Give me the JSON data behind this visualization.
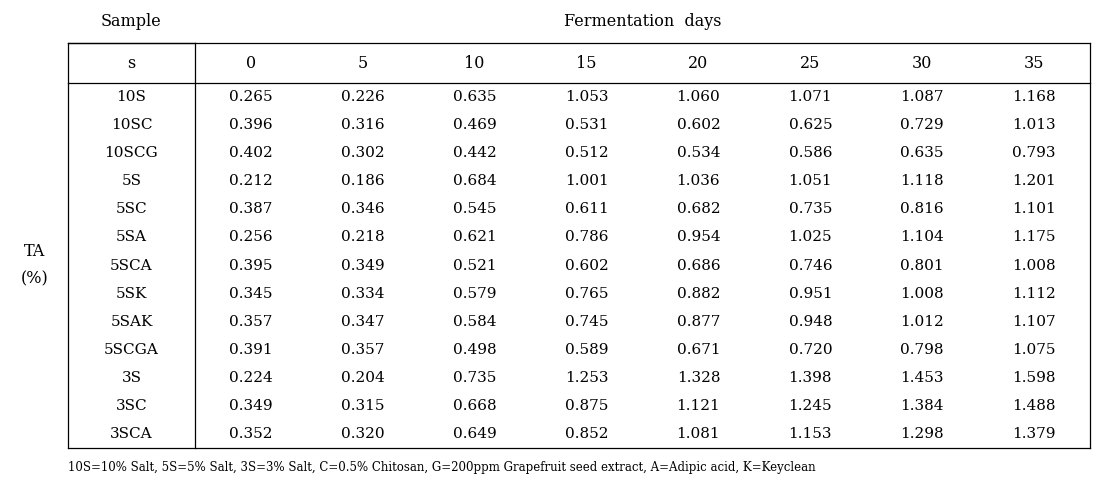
{
  "title": "Fermentation  days",
  "row_label_main": "TA\n(%)",
  "col_header_left1": "Sample",
  "col_header_left2": "s",
  "fermentation_days": [
    "0",
    "5",
    "10",
    "15",
    "20",
    "25",
    "30",
    "35"
  ],
  "samples": [
    "10S",
    "10SC",
    "10SCG",
    "5S",
    "5SC",
    "5SA",
    "5SCA",
    "5SK",
    "5SAK",
    "5SCGA",
    "3S",
    "3SC",
    "3SCA"
  ],
  "data": [
    [
      0.265,
      0.226,
      0.635,
      1.053,
      1.06,
      1.071,
      1.087,
      1.168
    ],
    [
      0.396,
      0.316,
      0.469,
      0.531,
      0.602,
      0.625,
      0.729,
      1.013
    ],
    [
      0.402,
      0.302,
      0.442,
      0.512,
      0.534,
      0.586,
      0.635,
      0.793
    ],
    [
      0.212,
      0.186,
      0.684,
      1.001,
      1.036,
      1.051,
      1.118,
      1.201
    ],
    [
      0.387,
      0.346,
      0.545,
      0.611,
      0.682,
      0.735,
      0.816,
      1.101
    ],
    [
      0.256,
      0.218,
      0.621,
      0.786,
      0.954,
      1.025,
      1.104,
      1.175
    ],
    [
      0.395,
      0.349,
      0.521,
      0.602,
      0.686,
      0.746,
      0.801,
      1.008
    ],
    [
      0.345,
      0.334,
      0.579,
      0.765,
      0.882,
      0.951,
      1.008,
      1.112
    ],
    [
      0.357,
      0.347,
      0.584,
      0.745,
      0.877,
      0.948,
      1.012,
      1.107
    ],
    [
      0.391,
      0.357,
      0.498,
      0.589,
      0.671,
      0.72,
      0.798,
      1.075
    ],
    [
      0.224,
      0.204,
      0.735,
      1.253,
      1.328,
      1.398,
      1.453,
      1.598
    ],
    [
      0.349,
      0.315,
      0.668,
      0.875,
      1.121,
      1.245,
      1.384,
      1.488
    ],
    [
      0.352,
      0.32,
      0.649,
      0.852,
      1.081,
      1.153,
      1.298,
      1.379
    ]
  ],
  "footnote": "10S=10% Salt, 5S=5% Salt, 3S=3% Salt, C=0.5% Chitosan, G=200ppm Grapefruit seed extract, A=Adipic acid, K=Keyclean",
  "bg_color": "#ffffff",
  "text_color": "#000000",
  "line_color": "#000000",
  "font_size_header": 11.5,
  "font_size_data": 11,
  "font_size_footnote": 8.5
}
